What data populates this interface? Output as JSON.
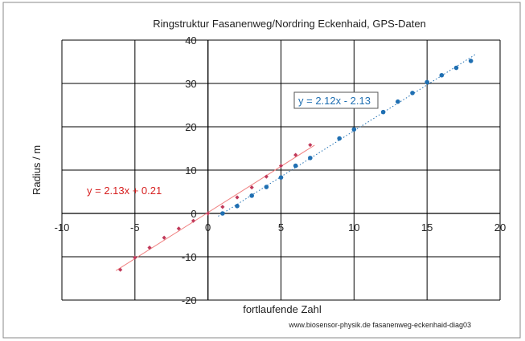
{
  "chart_data": {
    "type": "scatter",
    "title": "Ringstruktur Fasanenweg/Nordring Eckenhaid, GPS-Daten",
    "xlabel": "fortlaufende Zahl",
    "ylabel": "Radius / m",
    "xlim": [
      -10,
      20
    ],
    "ylim": [
      -20,
      40
    ],
    "x_ticks": [
      "-10",
      "-5",
      "0",
      "5",
      "10",
      "15",
      "20"
    ],
    "y_ticks": [
      "-20",
      "-10",
      "0",
      "10",
      "20",
      "30",
      "40"
    ],
    "x_tick_values": [
      -10,
      -5,
      0,
      5,
      10,
      15,
      20
    ],
    "y_tick_values": [
      -20,
      -10,
      0,
      10,
      20,
      30,
      40
    ],
    "grid": true,
    "credit": "www.biosensor-physik.de fasanenweg-eckenhaid-diag03",
    "series": [
      {
        "color": "#c0395a",
        "marker": "diamond",
        "x": [
          -6,
          -5,
          -4,
          -3,
          -2,
          -1,
          0,
          1,
          2,
          3,
          4,
          5,
          6,
          7
        ],
        "y": [
          -13,
          -10.2,
          -7.9,
          -5.6,
          -3.5,
          -1.7,
          0,
          1.5,
          3.7,
          6,
          8.5,
          11,
          13.5,
          15.8
        ],
        "trendline": {
          "slope": 2.13,
          "intercept": 0.21,
          "x_range": [
            -6,
            7
          ],
          "style": "solid",
          "color": "#f08080",
          "label": "y = 2.13x + 0.21",
          "label_color": "#d62020"
        }
      },
      {
        "color": "#1f6fb2",
        "marker": "circle",
        "x": [
          1,
          2,
          3,
          4,
          5,
          6,
          7,
          9,
          10,
          12,
          13,
          14,
          15,
          16,
          17,
          18
        ],
        "y": [
          0,
          1.7,
          4.1,
          6.1,
          8.3,
          11,
          12.8,
          17.3,
          19.4,
          23.4,
          25.8,
          27.8,
          30.3,
          31.9,
          33.6,
          35.2
        ],
        "trendline": {
          "slope": 2.12,
          "intercept": -2.13,
          "x_range": [
            1,
            18
          ],
          "style": "dotted",
          "color": "#1f6fb2",
          "label": "y = 2.12x - 2.13",
          "label_color": "#1f6fb2"
        }
      }
    ]
  }
}
